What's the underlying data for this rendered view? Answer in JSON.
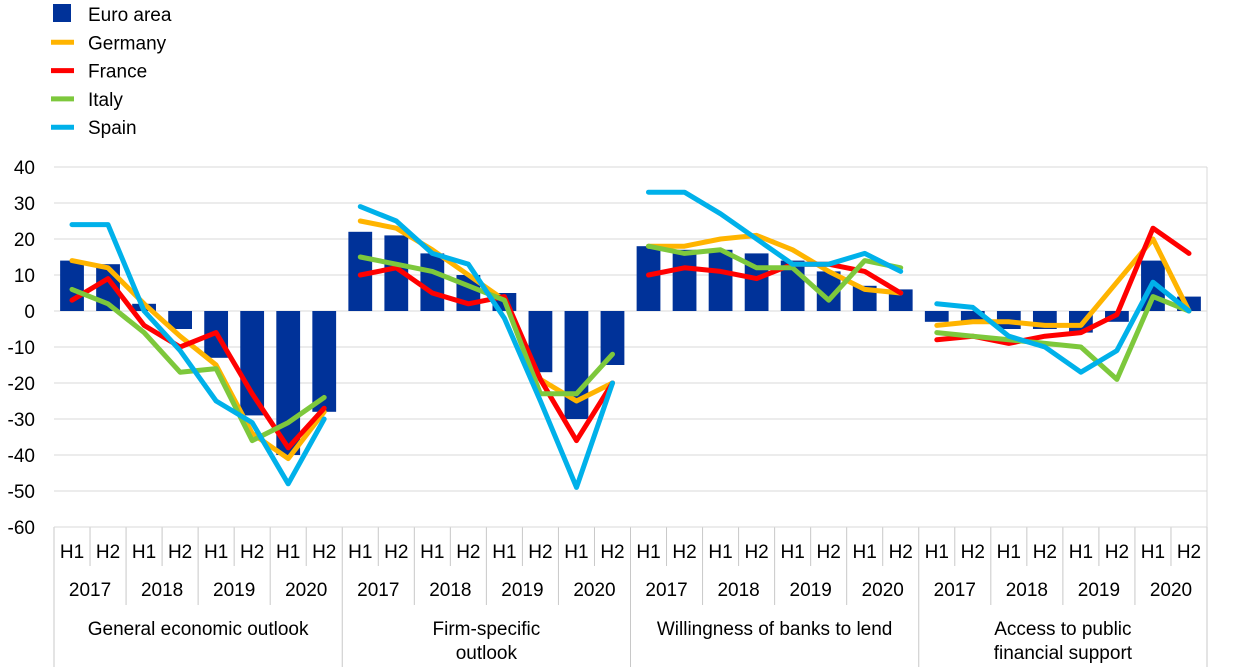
{
  "chart_data": {
    "type": "bar",
    "ylim": [
      -60,
      40
    ],
    "yticks": [
      40,
      30,
      20,
      10,
      0,
      -10,
      -20,
      -30,
      -40,
      -50,
      -60
    ],
    "grid": true,
    "legend_position": "top-left",
    "groups": [
      {
        "label_lines": [
          "General economic outlook"
        ]
      },
      {
        "label_lines": [
          "Firm-specific",
          "outlook"
        ]
      },
      {
        "label_lines": [
          "Willingness of banks to lend"
        ]
      },
      {
        "label_lines": [
          "Access to public",
          "financial support"
        ]
      }
    ],
    "years": [
      "2017",
      "2018",
      "2019",
      "2020"
    ],
    "halves": [
      "H1",
      "H2"
    ],
    "colors": {
      "Euro area": "#003299",
      "Germany": "#FFB400",
      "France": "#FF0000",
      "Italy": "#7DC83C",
      "Spain": "#00B1EA"
    },
    "series": [
      {
        "name": "Euro area",
        "kind": "bar",
        "values": [
          [
            14,
            13,
            2,
            -5,
            -13,
            -29,
            -40,
            -28
          ],
          [
            22,
            21,
            16,
            10,
            5,
            -17,
            -30,
            -15
          ],
          [
            18,
            17,
            17,
            16,
            14,
            11,
            7,
            6
          ],
          [
            -3,
            -3,
            -5,
            -5,
            -6,
            -3,
            14,
            4
          ]
        ]
      },
      {
        "name": "Germany",
        "kind": "line",
        "values": [
          [
            14,
            12,
            2,
            -7,
            -15,
            -34,
            -41,
            -28
          ],
          [
            25,
            23,
            17,
            10,
            3,
            -19,
            -25,
            -20
          ],
          [
            18,
            18,
            20,
            21,
            17,
            11,
            6,
            5
          ],
          [
            -4,
            -3,
            -3,
            -4,
            -4,
            8,
            20,
            0
          ]
        ]
      },
      {
        "name": "France",
        "kind": "line",
        "values": [
          [
            3,
            9,
            -4,
            -10,
            -6,
            -23,
            -38,
            -27
          ],
          [
            10,
            12,
            5,
            2,
            4,
            -19,
            -36,
            -20
          ],
          [
            10,
            12,
            11,
            9,
            13,
            13,
            11,
            5
          ],
          [
            -8,
            -7,
            -9,
            -7,
            -6,
            -1,
            23,
            16
          ]
        ]
      },
      {
        "name": "Italy",
        "kind": "line",
        "values": [
          [
            6,
            2,
            -6,
            -17,
            -16,
            -36,
            -31,
            -24
          ],
          [
            15,
            13,
            11,
            7,
            3,
            -23,
            -23,
            -12
          ],
          [
            18,
            16,
            17,
            12,
            12,
            3,
            14,
            12
          ],
          [
            -6,
            -7,
            -8,
            -9,
            -10,
            -19,
            4,
            0
          ]
        ]
      },
      {
        "name": "Spain",
        "kind": "line",
        "values": [
          [
            24,
            24,
            0,
            -11,
            -25,
            -31,
            -48,
            -30
          ],
          [
            29,
            25,
            16,
            13,
            -2,
            -25,
            -49,
            -20
          ],
          [
            33,
            33,
            27,
            20,
            13,
            13,
            16,
            11
          ],
          [
            2,
            1,
            -7,
            -10,
            -17,
            -11,
            8,
            0
          ]
        ]
      }
    ]
  }
}
